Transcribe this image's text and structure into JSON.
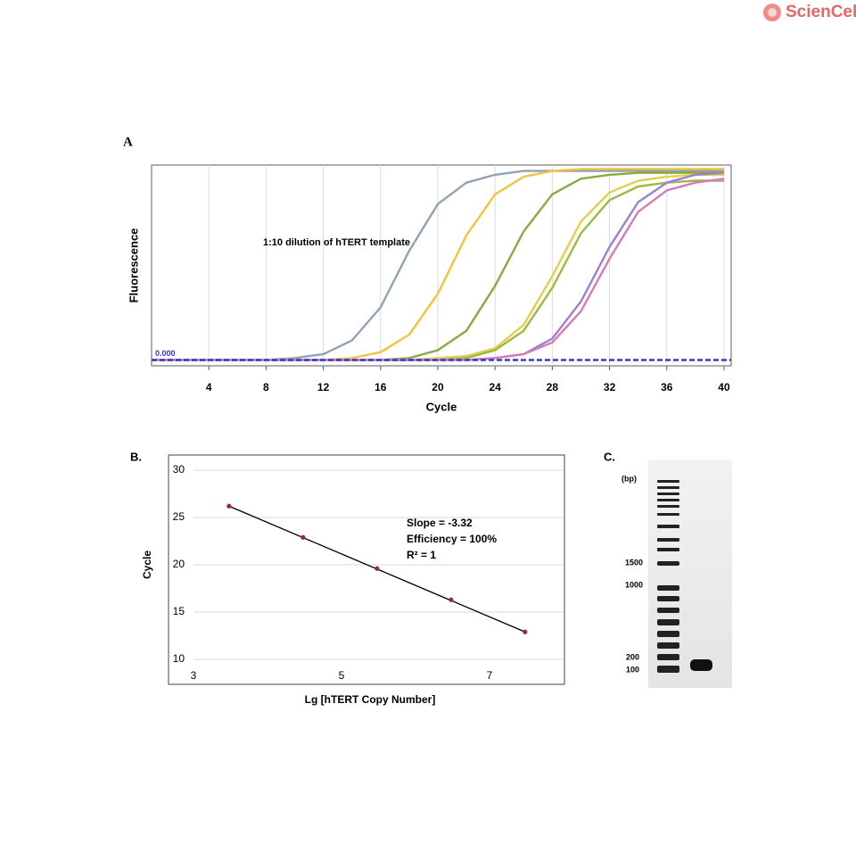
{
  "logo": "ScienCell",
  "chart_data": [
    {
      "type": "line",
      "panel": "A",
      "x_label": "Cycle",
      "y_label": "Fluorescence",
      "annotation": "1:10 dilution of hTERT template",
      "threshold": {
        "value": 0,
        "label": "0.000"
      },
      "xlim": [
        0,
        40.5
      ],
      "ylim": [
        -0.03,
        1.0
      ],
      "xticks": [
        4,
        8,
        12,
        16,
        20,
        24,
        28,
        32,
        36,
        40
      ],
      "grid": true,
      "x": [
        0,
        2,
        4,
        6,
        8,
        10,
        12,
        14,
        16,
        18,
        20,
        22,
        24,
        26,
        28,
        30,
        32,
        34,
        36,
        38,
        40
      ],
      "series": [
        {
          "color": "#8fa3b5",
          "values": [
            0,
            0,
            0,
            0,
            0,
            0.01,
            0.03,
            0.1,
            0.27,
            0.56,
            0.8,
            0.91,
            0.95,
            0.97,
            0.97,
            0.97,
            0.97,
            0.97,
            0.97,
            0.97,
            0.97
          ]
        },
        {
          "color": "#f2c43e",
          "values": [
            0,
            0,
            0,
            0,
            0,
            0,
            0,
            0.01,
            0.04,
            0.13,
            0.34,
            0.64,
            0.85,
            0.94,
            0.97,
            0.98,
            0.98,
            0.98,
            0.98,
            0.98,
            0.98
          ]
        },
        {
          "color": "#86ab43",
          "values": [
            0,
            0,
            0,
            0,
            0,
            0,
            0,
            0,
            0,
            0.01,
            0.05,
            0.15,
            0.38,
            0.66,
            0.85,
            0.93,
            0.95,
            0.96,
            0.96,
            0.96,
            0.96
          ]
        },
        {
          "color": "#e6cf48",
          "values": [
            0,
            0,
            0,
            0,
            0,
            0,
            0,
            0,
            0,
            0,
            0.01,
            0.02,
            0.06,
            0.18,
            0.43,
            0.71,
            0.86,
            0.92,
            0.94,
            0.95,
            0.95
          ]
        },
        {
          "color": "#9cb84a",
          "values": [
            0,
            0,
            0,
            0,
            0,
            0,
            0,
            0,
            0,
            0,
            0,
            0.01,
            0.05,
            0.15,
            0.37,
            0.65,
            0.82,
            0.89,
            0.91,
            0.92,
            0.92
          ]
        },
        {
          "color": "#a07fd0",
          "values": [
            0,
            0,
            0,
            0,
            0,
            0,
            0,
            0,
            0,
            0,
            0,
            0,
            0.01,
            0.03,
            0.11,
            0.3,
            0.58,
            0.81,
            0.91,
            0.95,
            0.96
          ]
        },
        {
          "color": "#d67ab8",
          "values": [
            0,
            0,
            0,
            0,
            0,
            0,
            0,
            0,
            0,
            0,
            0,
            0,
            0.01,
            0.03,
            0.09,
            0.25,
            0.52,
            0.76,
            0.87,
            0.91,
            0.93
          ]
        }
      ]
    },
    {
      "type": "scatter",
      "panel": "B.",
      "x_label": "Lg [hTERT Copy Number]",
      "y_label": "Cycle",
      "annotations": [
        "Slope = -3.32",
        "Efficiency = 100%",
        "R² = 1"
      ],
      "xlim": [
        3,
        8
      ],
      "ylim": [
        10,
        30
      ],
      "xticks": [
        3,
        5,
        7
      ],
      "yticks": [
        10,
        15,
        20,
        25,
        30
      ],
      "grid": true,
      "trendline": true,
      "color": "#9b2a2a",
      "x": [
        3.48,
        4.48,
        5.48,
        6.48,
        7.48
      ],
      "values": [
        26.2,
        22.9,
        19.6,
        16.3,
        12.9
      ]
    }
  ],
  "gel": {
    "panel": "C.",
    "unit": "(bp)",
    "markers": [
      1500,
      1000,
      200,
      100
    ]
  }
}
